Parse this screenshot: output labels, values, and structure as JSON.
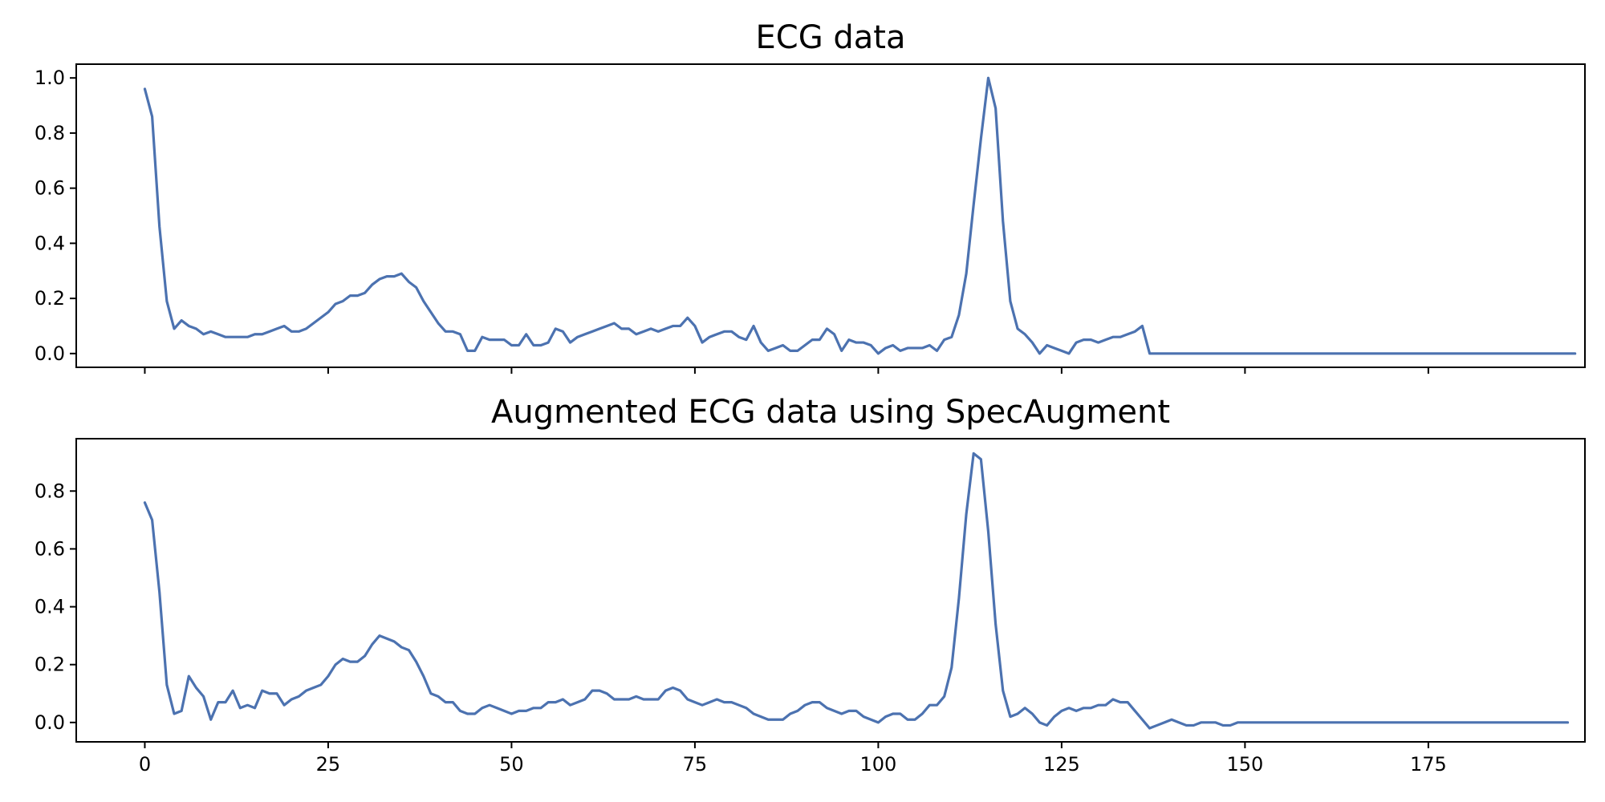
{
  "chart_data": [
    {
      "type": "line",
      "title": "ECG data",
      "xlabel": "",
      "ylabel": "",
      "xlim": [
        -9.35,
        196.35
      ],
      "ylim": [
        -0.05,
        1.05
      ],
      "xticks": [
        0,
        25,
        50,
        75,
        100,
        125,
        150,
        175
      ],
      "xtick_labels_visible": false,
      "yticks": [
        0.0,
        0.2,
        0.4,
        0.6,
        0.8,
        1.0
      ],
      "ytick_labels": [
        "0.0",
        "0.2",
        "0.4",
        "0.6",
        "0.8",
        "1.0"
      ],
      "grid": false,
      "color": "#4c72b0",
      "series": [
        {
          "values": [
            0.96,
            0.86,
            0.46,
            0.19,
            0.09,
            0.12,
            0.1,
            0.09,
            0.07,
            0.08,
            0.07,
            0.06,
            0.06,
            0.06,
            0.06,
            0.07,
            0.07,
            0.08,
            0.09,
            0.1,
            0.08,
            0.08,
            0.09,
            0.11,
            0.13,
            0.15,
            0.18,
            0.19,
            0.21,
            0.21,
            0.22,
            0.25,
            0.27,
            0.28,
            0.28,
            0.29,
            0.26,
            0.24,
            0.19,
            0.15,
            0.11,
            0.08,
            0.08,
            0.07,
            0.01,
            0.01,
            0.06,
            0.05,
            0.05,
            0.05,
            0.03,
            0.03,
            0.07,
            0.03,
            0.03,
            0.04,
            0.09,
            0.08,
            0.04,
            0.06,
            0.07,
            0.08,
            0.09,
            0.1,
            0.11,
            0.09,
            0.09,
            0.07,
            0.08,
            0.09,
            0.08,
            0.09,
            0.1,
            0.1,
            0.13,
            0.1,
            0.04,
            0.06,
            0.07,
            0.08,
            0.08,
            0.06,
            0.05,
            0.1,
            0.04,
            0.01,
            0.02,
            0.03,
            0.01,
            0.01,
            0.03,
            0.05,
            0.05,
            0.09,
            0.07,
            0.01,
            0.05,
            0.04,
            0.04,
            0.03,
            0.0,
            0.02,
            0.03,
            0.01,
            0.02,
            0.02,
            0.02,
            0.03,
            0.01,
            0.05,
            0.06,
            0.14,
            0.29,
            0.54,
            0.78,
            1.0,
            0.89,
            0.48,
            0.19,
            0.09,
            0.07,
            0.04,
            0.0,
            0.03,
            0.02,
            0.01,
            0.0,
            0.04,
            0.05,
            0.05,
            0.04,
            0.05,
            0.06,
            0.06,
            0.07,
            0.08,
            0.1,
            0.0,
            0.0,
            0.0,
            0.0,
            0.0,
            0.0,
            0.0,
            0.0,
            0.0,
            0.0,
            0.0,
            0.0,
            0.0,
            0.0,
            0.0,
            0.0,
            0.0,
            0.0,
            0.0,
            0.0,
            0.0,
            0.0,
            0.0,
            0.0,
            0.0,
            0.0,
            0.0,
            0.0,
            0.0,
            0.0,
            0.0,
            0.0,
            0.0,
            0.0,
            0.0,
            0.0,
            0.0,
            0.0,
            0.0,
            0.0,
            0.0,
            0.0,
            0.0,
            0.0,
            0.0,
            0.0,
            0.0,
            0.0,
            0.0,
            0.0,
            0.0,
            0.0,
            0.0,
            0.0,
            0.0,
            0.0,
            0.0,
            0.0,
            0.0
          ]
        }
      ]
    },
    {
      "type": "line",
      "title": "Augmented ECG data using SpecAugment",
      "xlabel": "",
      "ylabel": "",
      "xlim": [
        -9.35,
        196.35
      ],
      "ylim": [
        -0.067,
        0.981
      ],
      "xticks": [
        0,
        25,
        50,
        75,
        100,
        125,
        150,
        175
      ],
      "xtick_labels_visible": true,
      "xtick_labels": [
        "0",
        "25",
        "50",
        "75",
        "100",
        "125",
        "150",
        "175"
      ],
      "yticks": [
        0.0,
        0.2,
        0.4,
        0.6,
        0.8
      ],
      "ytick_labels": [
        "0.0",
        "0.2",
        "0.4",
        "0.6",
        "0.8"
      ],
      "grid": false,
      "color": "#4c72b0",
      "series": [
        {
          "values": [
            0.76,
            0.7,
            0.45,
            0.13,
            0.03,
            0.04,
            0.16,
            0.12,
            0.09,
            0.01,
            0.07,
            0.07,
            0.11,
            0.05,
            0.06,
            0.05,
            0.11,
            0.1,
            0.1,
            0.06,
            0.08,
            0.09,
            0.11,
            0.12,
            0.13,
            0.16,
            0.2,
            0.22,
            0.21,
            0.21,
            0.23,
            0.27,
            0.3,
            0.29,
            0.28,
            0.26,
            0.25,
            0.21,
            0.16,
            0.1,
            0.09,
            0.07,
            0.07,
            0.04,
            0.03,
            0.03,
            0.05,
            0.06,
            0.05,
            0.04,
            0.03,
            0.04,
            0.04,
            0.05,
            0.05,
            0.07,
            0.07,
            0.08,
            0.06,
            0.07,
            0.08,
            0.11,
            0.11,
            0.1,
            0.08,
            0.08,
            0.08,
            0.09,
            0.08,
            0.08,
            0.08,
            0.11,
            0.12,
            0.11,
            0.08,
            0.07,
            0.06,
            0.07,
            0.08,
            0.07,
            0.07,
            0.06,
            0.05,
            0.03,
            0.02,
            0.01,
            0.01,
            0.01,
            0.03,
            0.04,
            0.06,
            0.07,
            0.07,
            0.05,
            0.04,
            0.03,
            0.04,
            0.04,
            0.02,
            0.01,
            0.0,
            0.02,
            0.03,
            0.03,
            0.01,
            0.01,
            0.03,
            0.06,
            0.06,
            0.09,
            0.19,
            0.43,
            0.72,
            0.93,
            0.91,
            0.66,
            0.34,
            0.11,
            0.02,
            0.03,
            0.05,
            0.03,
            0.0,
            -0.01,
            0.02,
            0.04,
            0.05,
            0.04,
            0.05,
            0.05,
            0.06,
            0.06,
            0.08,
            0.07,
            0.07,
            0.04,
            0.01,
            -0.02,
            -0.01,
            0.0,
            0.01,
            0.0,
            -0.01,
            -0.01,
            0.0,
            0.0,
            0.0,
            -0.01,
            -0.01,
            0.0,
            0.0,
            0.0,
            0.0,
            0.0,
            0.0,
            0.0,
            0.0,
            0.0,
            0.0,
            0.0,
            0.0,
            0.0,
            0.0,
            0.0,
            0.0,
            0.0,
            0.0,
            0.0,
            0.0,
            0.0,
            0.0,
            0.0,
            0.0,
            0.0,
            0.0,
            0.0,
            0.0,
            0.0,
            0.0,
            0.0,
            0.0,
            0.0,
            0.0,
            0.0,
            0.0,
            0.0,
            0.0,
            0.0,
            0.0,
            0.0,
            0.0,
            0.0,
            0.0,
            0.0,
            0.0
          ]
        }
      ]
    }
  ]
}
